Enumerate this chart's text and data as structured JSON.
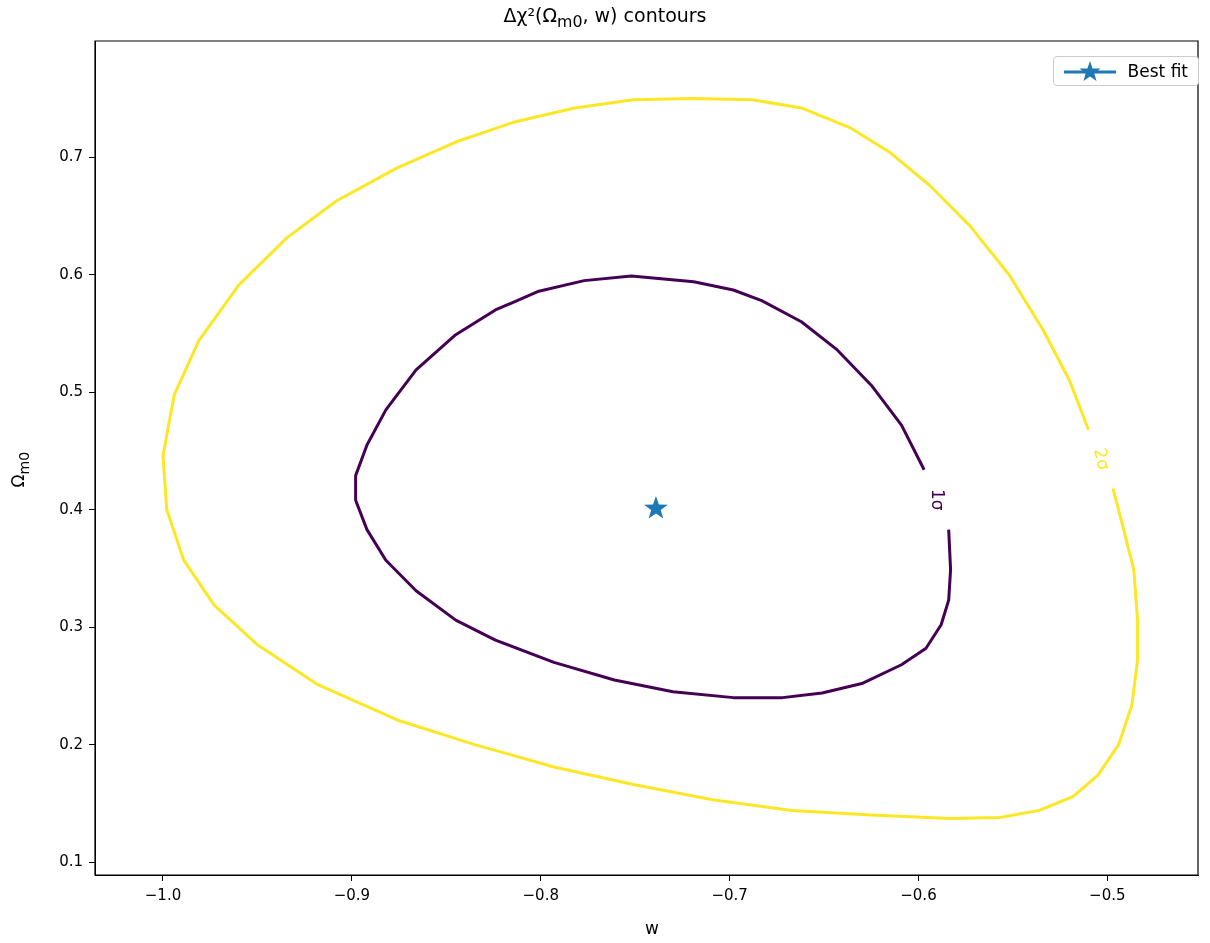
{
  "chart_data": {
    "type": "line",
    "title": "Δχ²(Ω$_{m0}$, w) contours",
    "xlabel": "w",
    "ylabel": "Ω$_{m0}$",
    "xlim": [
      -1.036,
      -0.452
    ],
    "ylim": [
      0.089,
      0.799
    ],
    "xticks": [
      {
        "value": -1.0,
        "label": "−1.0"
      },
      {
        "value": -0.9,
        "label": "−0.9"
      },
      {
        "value": -0.8,
        "label": "−0.8"
      },
      {
        "value": -0.7,
        "label": "−0.7"
      },
      {
        "value": -0.6,
        "label": "−0.6"
      },
      {
        "value": -0.5,
        "label": "−0.5"
      }
    ],
    "yticks": [
      0.1,
      0.2,
      0.3,
      0.4,
      0.5,
      0.6,
      0.7
    ],
    "grid": false,
    "legend": "top right",
    "marker": "none",
    "line_style": "solid",
    "series": [
      {
        "color": "#440154",
        "x": [
          -0.597,
          -0.609,
          -0.625,
          -0.643,
          -0.662,
          -0.683,
          -0.698,
          -0.719,
          -0.752,
          -0.777,
          -0.801,
          -0.824,
          -0.845,
          -0.866,
          -0.882,
          -0.892,
          -0.898,
          -0.898,
          -0.892,
          -0.882,
          -0.866,
          -0.845,
          -0.824,
          -0.793,
          -0.761,
          -0.73,
          -0.698,
          -0.672,
          -0.651,
          -0.63,
          -0.609,
          -0.596,
          -0.588,
          -0.584,
          -0.583,
          -0.584
        ],
        "values": [
          0.434,
          0.472,
          0.506,
          0.536,
          0.56,
          0.578,
          0.587,
          0.594,
          0.599,
          0.595,
          0.586,
          0.57,
          0.549,
          0.519,
          0.485,
          0.455,
          0.429,
          0.408,
          0.383,
          0.357,
          0.331,
          0.306,
          0.289,
          0.27,
          0.255,
          0.245,
          0.24,
          0.24,
          0.244,
          0.252,
          0.268,
          0.282,
          0.302,
          0.323,
          0.349,
          0.383
        ]
      },
      {
        "color": "#fde725",
        "x": [
          -0.51,
          -0.52,
          -0.534,
          -0.552,
          -0.573,
          -0.594,
          -0.615,
          -0.636,
          -0.662,
          -0.688,
          -0.719,
          -0.751,
          -0.782,
          -0.814,
          -0.845,
          -0.876,
          -0.908,
          -0.934,
          -0.96,
          -0.981,
          -0.994,
          -1.0,
          -0.998,
          -0.989,
          -0.973,
          -0.95,
          -0.918,
          -0.876,
          -0.835,
          -0.793,
          -0.751,
          -0.709,
          -0.667,
          -0.625,
          -0.583,
          -0.557,
          -0.536,
          -0.518,
          -0.505,
          -0.494,
          -0.487,
          -0.484,
          -0.484,
          -0.486,
          -0.492,
          -0.497
        ],
        "values": [
          0.468,
          0.51,
          0.553,
          0.6,
          0.642,
          0.676,
          0.704,
          0.725,
          0.742,
          0.749,
          0.75,
          0.749,
          0.742,
          0.73,
          0.713,
          0.691,
          0.663,
          0.632,
          0.591,
          0.544,
          0.498,
          0.446,
          0.4,
          0.357,
          0.319,
          0.285,
          0.251,
          0.221,
          0.2,
          0.181,
          0.166,
          0.153,
          0.144,
          0.14,
          0.137,
          0.138,
          0.144,
          0.156,
          0.174,
          0.2,
          0.234,
          0.272,
          0.306,
          0.349,
          0.387,
          0.418
        ]
      },
      {
        "type": "scatter",
        "name": "Best fit",
        "color": "#1f77b4",
        "marker": "star",
        "x": [
          -0.739
        ],
        "values": [
          0.401
        ]
      }
    ],
    "annotations": [
      "1σ",
      "2σ"
    ]
  }
}
